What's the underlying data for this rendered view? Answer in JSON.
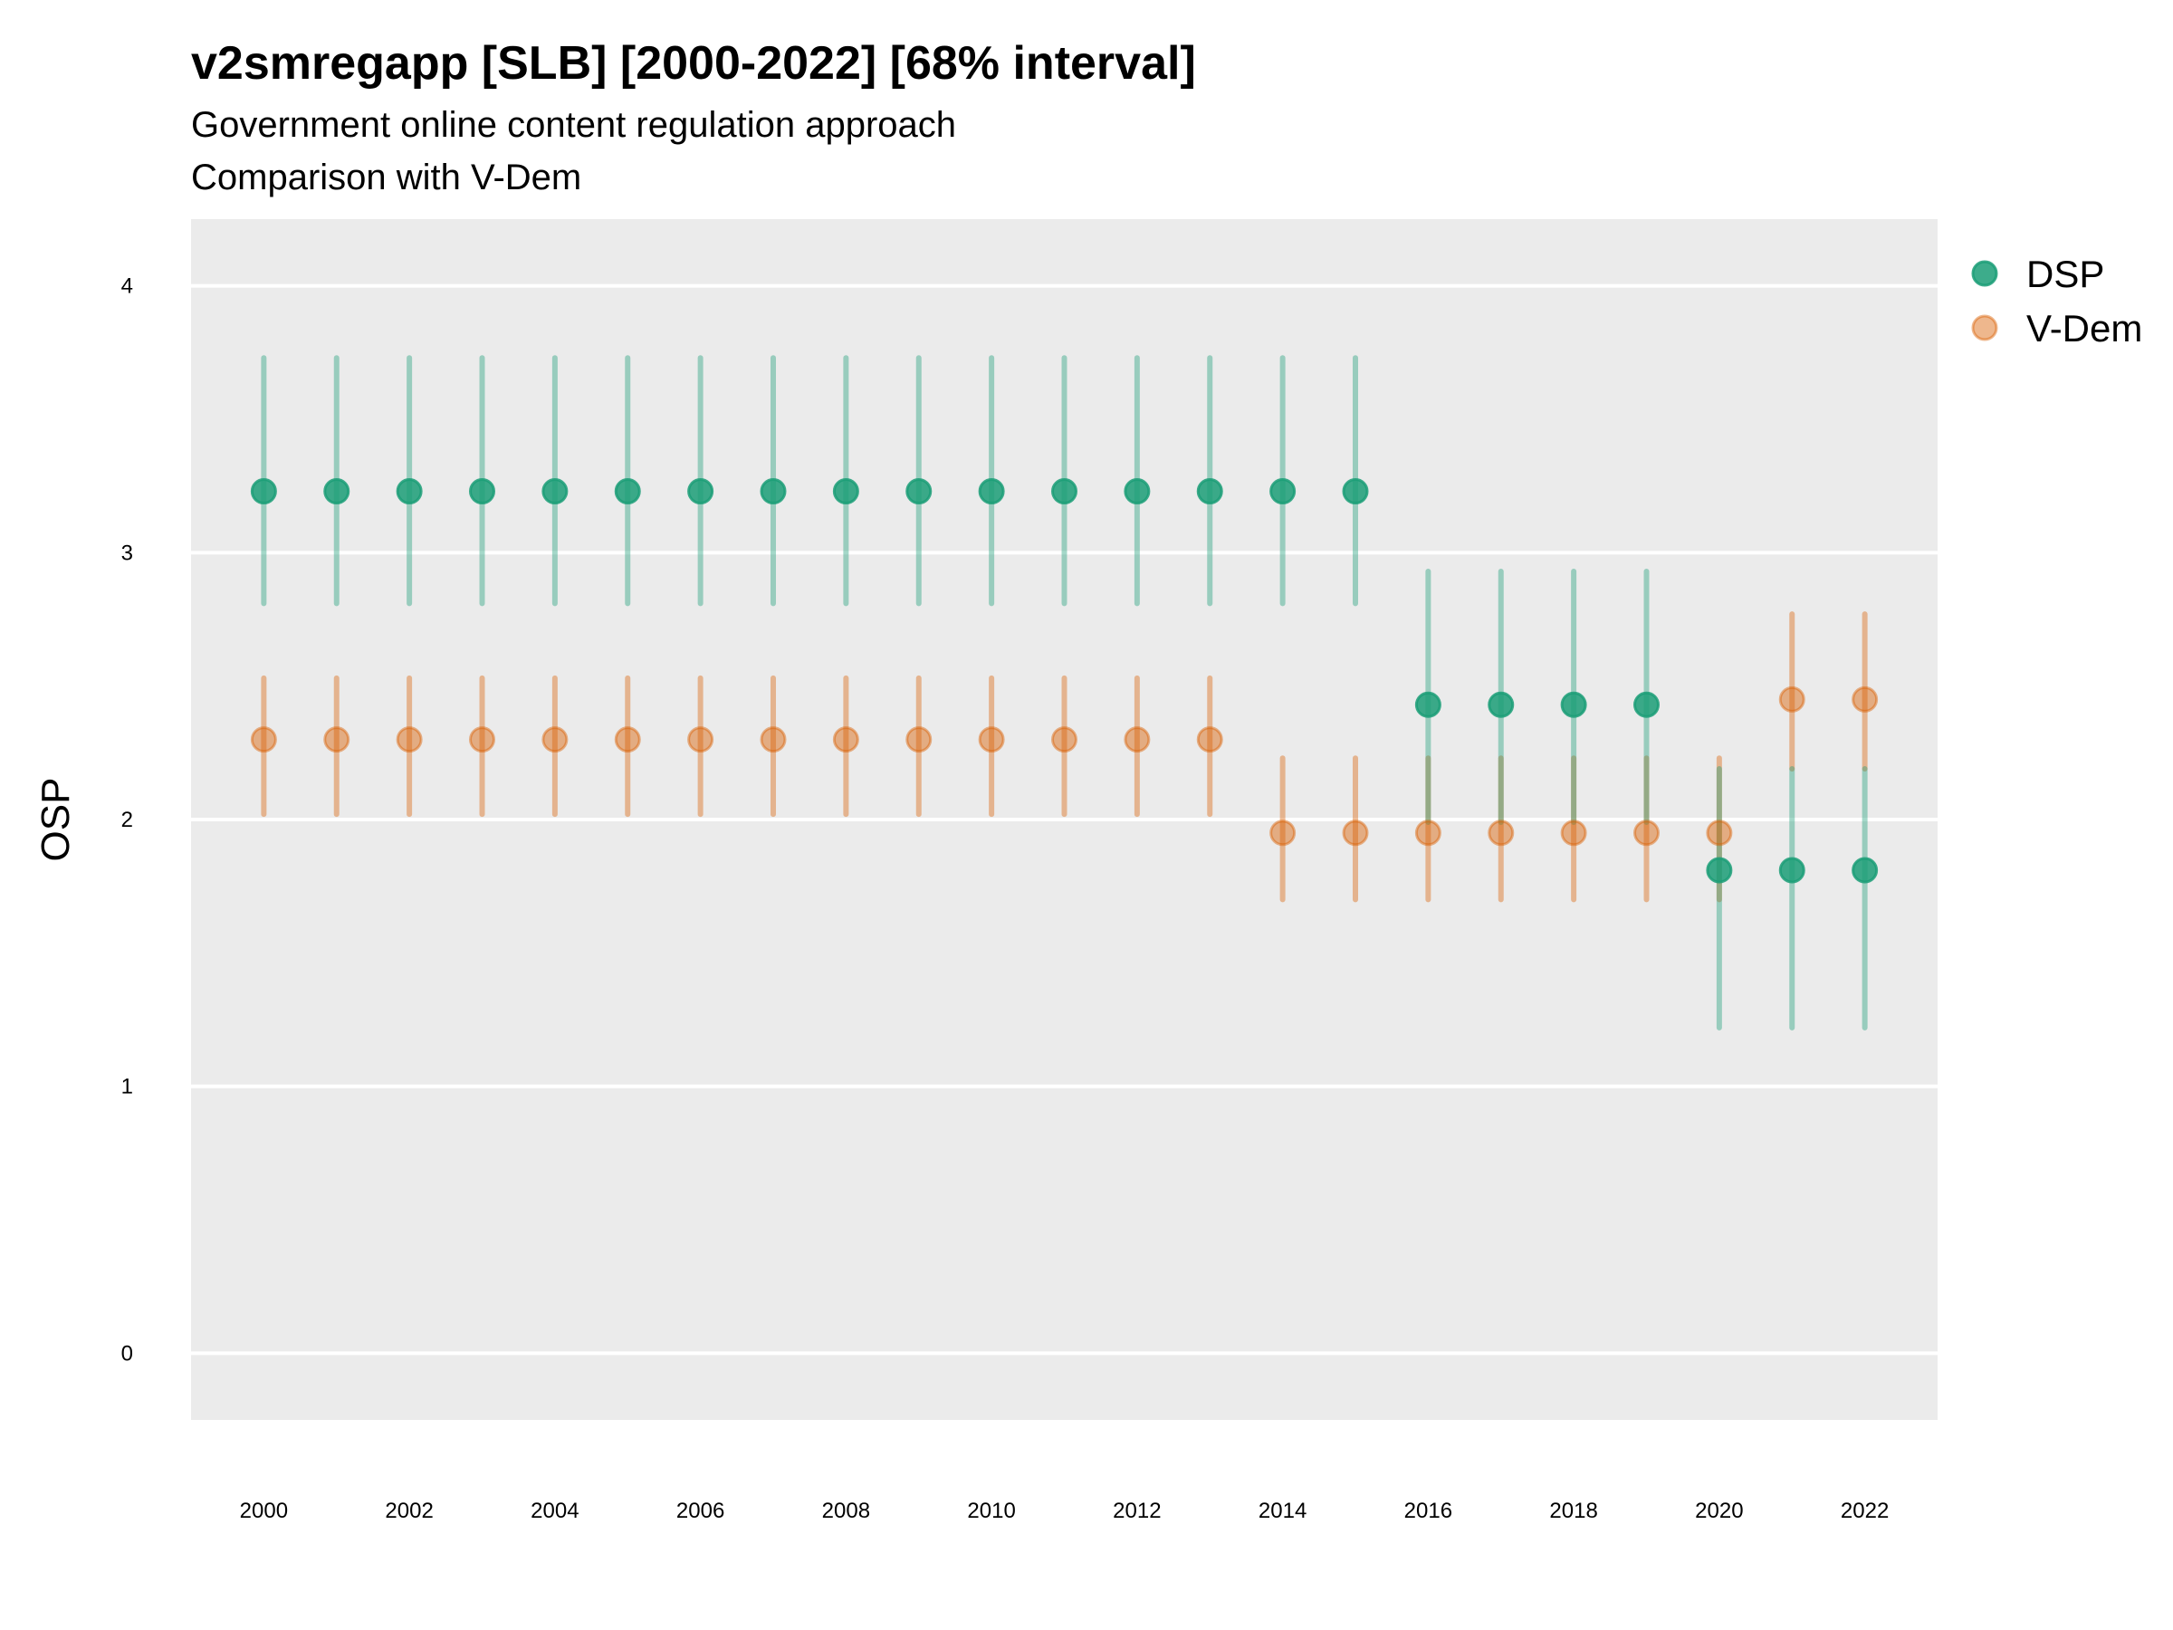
{
  "chart_data": {
    "type": "errorbar-point",
    "title": "v2smregapp [SLB] [2000-2022] [68% interval]",
    "subtitle": "Government online content regulation approach",
    "subtitle2": "Comparison with V-Dem",
    "xlabel": "",
    "ylabel": "OSP",
    "xlim": [
      1999,
      2023
    ],
    "ylim": [
      -0.25,
      4.25
    ],
    "yticks": [
      "0",
      "1",
      "2",
      "3",
      "4"
    ],
    "xticks": [
      "2000",
      "2002",
      "2004",
      "2006",
      "2008",
      "2010",
      "2012",
      "2014",
      "2016",
      "2018",
      "2020",
      "2022"
    ],
    "grid": true,
    "legend_position": "right",
    "series": [
      {
        "name": "DSP",
        "color": "#1b9e77",
        "x": [
          2000,
          2001,
          2002,
          2003,
          2004,
          2005,
          2006,
          2007,
          2008,
          2009,
          2010,
          2011,
          2012,
          2013,
          2014,
          2015,
          2016,
          2017,
          2018,
          2019,
          2020,
          2021,
          2022
        ],
        "y": [
          3.23,
          3.23,
          3.23,
          3.23,
          3.23,
          3.23,
          3.23,
          3.23,
          3.23,
          3.23,
          3.23,
          3.23,
          3.23,
          3.23,
          3.23,
          3.23,
          2.43,
          2.43,
          2.43,
          2.43,
          1.81,
          1.81,
          1.81
        ],
        "lower": [
          2.81,
          2.81,
          2.81,
          2.81,
          2.81,
          2.81,
          2.81,
          2.81,
          2.81,
          2.81,
          2.81,
          2.81,
          2.81,
          2.81,
          2.81,
          2.81,
          1.99,
          1.99,
          1.99,
          1.99,
          1.22,
          1.22,
          1.22
        ],
        "upper": [
          3.73,
          3.73,
          3.73,
          3.73,
          3.73,
          3.73,
          3.73,
          3.73,
          3.73,
          3.73,
          3.73,
          3.73,
          3.73,
          3.73,
          3.73,
          3.73,
          2.93,
          2.93,
          2.93,
          2.93,
          2.19,
          2.19,
          2.19
        ]
      },
      {
        "name": "V-Dem",
        "color": "#d95f02",
        "x": [
          2000,
          2001,
          2002,
          2003,
          2004,
          2005,
          2006,
          2007,
          2008,
          2009,
          2010,
          2011,
          2012,
          2013,
          2014,
          2015,
          2016,
          2017,
          2018,
          2019,
          2020,
          2021,
          2022
        ],
        "y": [
          2.3,
          2.3,
          2.3,
          2.3,
          2.3,
          2.3,
          2.3,
          2.3,
          2.3,
          2.3,
          2.3,
          2.3,
          2.3,
          2.3,
          1.95,
          1.95,
          1.95,
          1.95,
          1.95,
          1.95,
          1.95,
          2.45,
          2.45
        ],
        "lower": [
          2.02,
          2.02,
          2.02,
          2.02,
          2.02,
          2.02,
          2.02,
          2.02,
          2.02,
          2.02,
          2.02,
          2.02,
          2.02,
          2.02,
          1.7,
          1.7,
          1.7,
          1.7,
          1.7,
          1.7,
          1.7,
          2.19,
          2.19
        ],
        "upper": [
          2.53,
          2.53,
          2.53,
          2.53,
          2.53,
          2.53,
          2.53,
          2.53,
          2.53,
          2.53,
          2.53,
          2.53,
          2.53,
          2.53,
          2.23,
          2.23,
          2.23,
          2.23,
          2.23,
          2.23,
          2.23,
          2.77,
          2.77
        ]
      }
    ]
  }
}
